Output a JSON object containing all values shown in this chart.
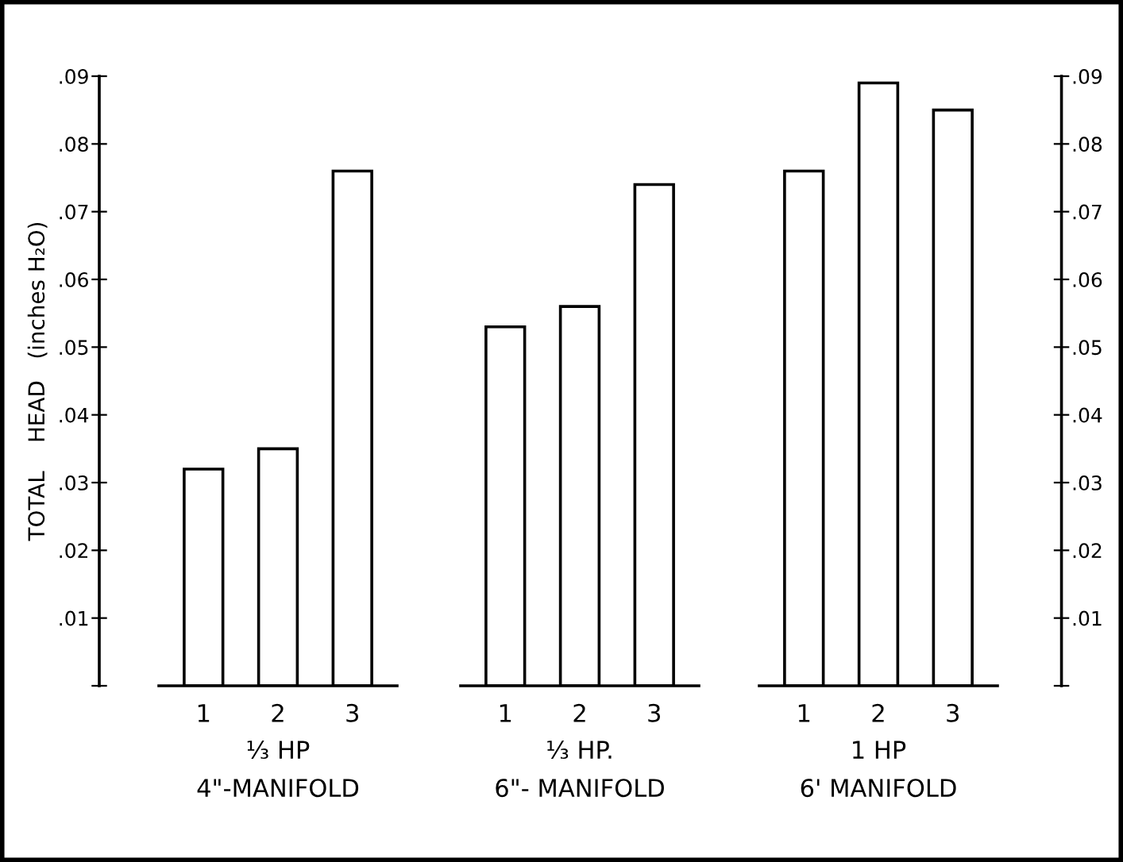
{
  "chart_data": [
    {
      "type": "bar",
      "categories": [
        "1",
        "2",
        "3"
      ],
      "values": [
        0.032,
        0.035,
        0.076
      ],
      "color": "#ffffff",
      "xlabel": "⅓ HP\n4\"-MANIFOLD",
      "ylabel": "TOTAL    HEAD   (inches H₂O)",
      "ylim": [
        0,
        0.09
      ],
      "yticks": [
        {
          "value": 0,
          "label": null
        },
        {
          "value": 0.01,
          "label": ".01"
        },
        {
          "value": 0.02,
          "label": ".02"
        },
        {
          "value": 0.03,
          "label": ".03"
        },
        {
          "value": 0.04,
          "label": ".04"
        },
        {
          "value": 0.05,
          "label": ".05"
        },
        {
          "value": 0.06,
          "label": ".06"
        },
        {
          "value": 0.07,
          "label": ".07"
        },
        {
          "value": 0.08,
          "label": ".08"
        },
        {
          "value": 0.09,
          "label": ".09"
        }
      ],
      "grid": false
    },
    {
      "type": "bar",
      "categories": [
        "1",
        "2",
        "3"
      ],
      "values": [
        0.053,
        0.056,
        0.074
      ],
      "color": "#ffffff",
      "xlabel": "⅓ HP.\n6\"- MANIFOLD",
      "ylim": [
        0,
        0.09
      ],
      "tick_labels": "x",
      "grid": false
    },
    {
      "type": "bar",
      "categories": [
        "1",
        "2",
        "3"
      ],
      "series": [
        {
          "axis": "y2",
          "color": "#ffffff",
          "values": [
            0.076,
            0.089,
            0.085
          ]
        }
      ],
      "xlabel": "1 HP\n6' MANIFOLD",
      "y2lim": [
        0,
        0.09
      ],
      "y2ticks": [
        {
          "value": 0,
          "label": null
        },
        {
          "value": 0.01,
          "label": ".01"
        },
        {
          "value": 0.02,
          "label": ".02"
        },
        {
          "value": 0.03,
          "label": ".03"
        },
        {
          "value": 0.04,
          "label": ".04"
        },
        {
          "value": 0.05,
          "label": ".05"
        },
        {
          "value": 0.06,
          "label": ".06"
        },
        {
          "value": 0.07,
          "label": ".07"
        },
        {
          "value": 0.08,
          "label": ".08"
        },
        {
          "value": 0.09,
          "label": ".09"
        }
      ],
      "grid": false
    }
  ]
}
